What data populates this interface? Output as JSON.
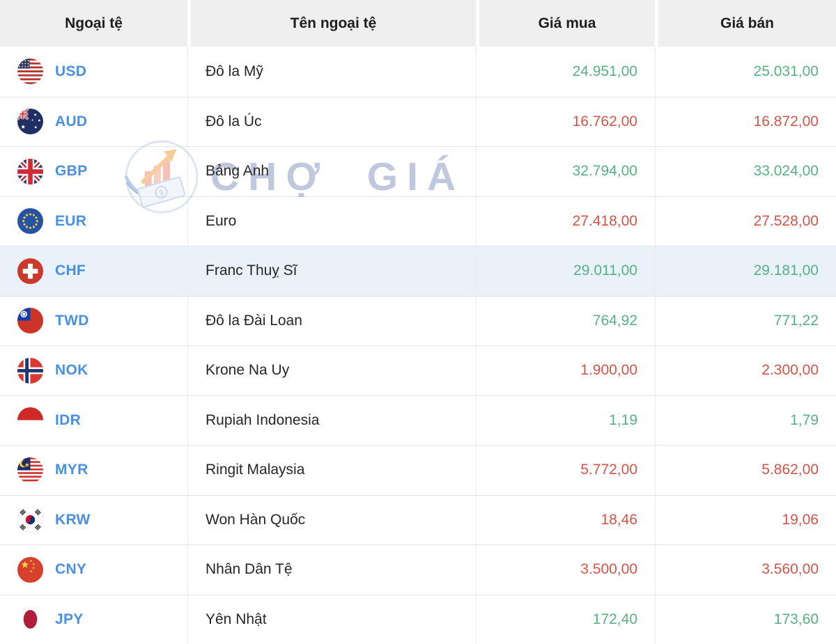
{
  "header": {
    "columns": [
      "Ngoại tệ",
      "Tên ngoại tệ",
      "Giá mua",
      "Giá bán"
    ]
  },
  "watermark": {
    "text": "CHỢ GIÁ",
    "logo_icon": "money-growth-chart-logo-icon"
  },
  "colors": {
    "price_up": "#57b183",
    "price_down": "#d35549",
    "currency_link": "#4a90e2",
    "header_bg": "#efefef",
    "row_highlight_bg": "#e9f2fa"
  },
  "rows": [
    {
      "code": "USD",
      "flag_icon": "usa-flag-icon",
      "name": "Đô la Mỹ",
      "buy": "24.951,00",
      "sell": "25.031,00",
      "trend": "up",
      "highlighted": false
    },
    {
      "code": "AUD",
      "flag_icon": "australia-flag-icon",
      "name": "Đô la Úc",
      "buy": "16.762,00",
      "sell": "16.872,00",
      "trend": "down",
      "highlighted": false
    },
    {
      "code": "GBP",
      "flag_icon": "uk-flag-icon",
      "name": "Bảng Anh",
      "buy": "32.794,00",
      "sell": "33.024,00",
      "trend": "up",
      "highlighted": false
    },
    {
      "code": "EUR",
      "flag_icon": "eu-flag-icon",
      "name": "Euro",
      "buy": "27.418,00",
      "sell": "27.528,00",
      "trend": "down",
      "highlighted": false
    },
    {
      "code": "CHF",
      "flag_icon": "switzerland-flag-icon",
      "name": "Franc Thuỵ Sĩ",
      "buy": "29.011,00",
      "sell": "29.181,00",
      "trend": "up",
      "highlighted": true
    },
    {
      "code": "TWD",
      "flag_icon": "taiwan-flag-icon",
      "name": "Đô la Đài Loan",
      "buy": "764,92",
      "sell": "771,22",
      "trend": "up",
      "highlighted": false
    },
    {
      "code": "NOK",
      "flag_icon": "norway-flag-icon",
      "name": "Krone Na Uy",
      "buy": "1.900,00",
      "sell": "2.300,00",
      "trend": "down",
      "highlighted": false
    },
    {
      "code": "IDR",
      "flag_icon": "indonesia-flag-icon",
      "name": "Rupiah Indonesia",
      "buy": "1,19",
      "sell": "1,79",
      "trend": "up",
      "highlighted": false
    },
    {
      "code": "MYR",
      "flag_icon": "malaysia-flag-icon",
      "name": "Ringit Malaysia",
      "buy": "5.772,00",
      "sell": "5.862,00",
      "trend": "down",
      "highlighted": false
    },
    {
      "code": "KRW",
      "flag_icon": "south-korea-flag-icon",
      "name": "Won Hàn Quốc",
      "buy": "18,46",
      "sell": "19,06",
      "trend": "down",
      "highlighted": false
    },
    {
      "code": "CNY",
      "flag_icon": "china-flag-icon",
      "name": "Nhân Dân Tệ",
      "buy": "3.500,00",
      "sell": "3.560,00",
      "trend": "down",
      "highlighted": false
    },
    {
      "code": "JPY",
      "flag_icon": "japan-flag-icon",
      "name": "Yên Nhật",
      "buy": "172,40",
      "sell": "173,60",
      "trend": "up",
      "highlighted": false
    }
  ]
}
